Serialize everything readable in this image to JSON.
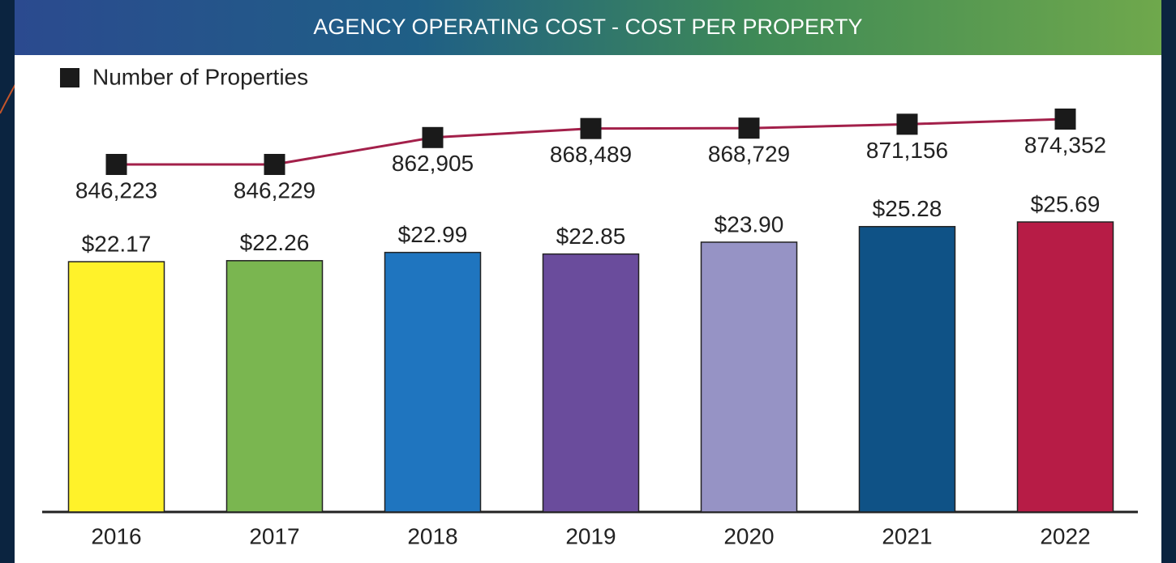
{
  "chart_data": {
    "type": "bar",
    "title": "AGENCY OPERATING COST - COST PER PROPERTY",
    "categories": [
      "2016",
      "2017",
      "2018",
      "2019",
      "2020",
      "2021",
      "2022"
    ],
    "series": [
      {
        "type": "bar",
        "colors": [
          "#fff22a",
          "#7ab650",
          "#1f75bf",
          "#6a4c9c",
          "#9693c5",
          "#0f5286",
          "#b71c46"
        ],
        "values": [
          22.17,
          22.26,
          22.99,
          22.85,
          23.9,
          25.28,
          25.69
        ],
        "value_labels": [
          "$22.17",
          "$22.26",
          "$22.99",
          "$22.85",
          "$23.90",
          "$25.28",
          "$25.69"
        ]
      },
      {
        "type": "line",
        "name": "Number of Properties",
        "color": "#a3204a",
        "marker_color": "#1a1a1a",
        "values": [
          846223,
          846229,
          862905,
          868489,
          868729,
          871156,
          874352
        ],
        "value_labels": [
          "846,223",
          "846,229",
          "862,905",
          "868,489",
          "868,729",
          "871,156",
          "874,352"
        ]
      }
    ],
    "legend": "top-left"
  }
}
